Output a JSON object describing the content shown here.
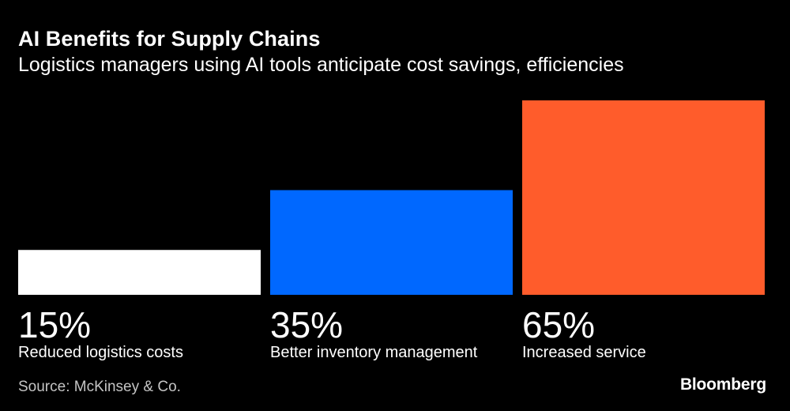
{
  "header": {
    "title": "AI Benefits for Supply Chains",
    "subtitle": "Logistics managers using AI tools anticipate cost savings, efficiencies"
  },
  "chart_data": {
    "type": "bar",
    "title": "AI Benefits for Supply Chains",
    "subtitle": "Logistics managers using AI tools anticipate cost savings, efficiencies",
    "categories": [
      "Reduced logistics costs",
      "Better inventory management",
      "Increased service"
    ],
    "values": [
      15,
      35,
      65
    ],
    "value_labels": [
      "15%",
      "35%",
      "65%"
    ],
    "colors": [
      "#ffffff",
      "#0068ff",
      "#ff5c2b"
    ],
    "unit": "%",
    "ylim": [
      0,
      65
    ],
    "grid": false,
    "legend": "none"
  },
  "footer": {
    "source": "Source: McKinsey & Co.",
    "logo": "Bloomberg"
  },
  "theme": {
    "background": "#000000",
    "text": "#ffffff",
    "source_text": "#c4c4c4"
  }
}
